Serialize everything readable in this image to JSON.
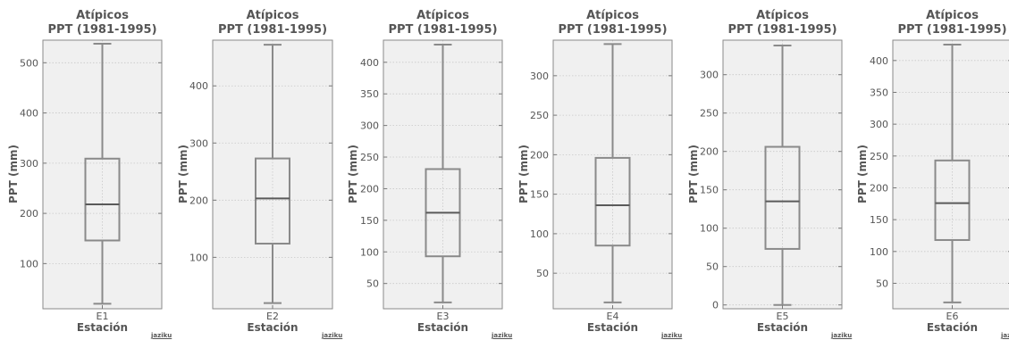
{
  "watermark": "jaziku",
  "chart_data": [
    {
      "type": "boxplot",
      "title": [
        "Atípicos",
        "PPT (1981-1995)"
      ],
      "xlabel": "Estación",
      "ylabel": "PPT (mm)",
      "categories": [
        "E1"
      ],
      "ylim": [
        10,
        545
      ],
      "yticks": [
        100,
        200,
        300,
        400,
        500
      ],
      "stats": {
        "min": 20,
        "q1": 146,
        "median": 218,
        "q3": 309,
        "max": 538
      },
      "grid": true
    },
    {
      "type": "boxplot",
      "title": [
        "Atípicos",
        "PPT (1981-1995)"
      ],
      "xlabel": "Estación",
      "ylabel": "PPT (mm)",
      "categories": [
        "E2"
      ],
      "ylim": [
        10,
        480
      ],
      "yticks": [
        100,
        200,
        300,
        400
      ],
      "stats": {
        "min": 20,
        "q1": 124,
        "median": 203,
        "q3": 273,
        "max": 472
      },
      "grid": true
    },
    {
      "type": "boxplot",
      "title": [
        "Atípicos",
        "PPT (1981-1995)"
      ],
      "xlabel": "Estación",
      "ylabel": "PPT (mm)",
      "categories": [
        "E3"
      ],
      "ylim": [
        10,
        435
      ],
      "yticks": [
        50,
        100,
        150,
        200,
        250,
        300,
        350,
        400
      ],
      "stats": {
        "min": 20,
        "q1": 93,
        "median": 162,
        "q3": 231,
        "max": 428
      },
      "grid": true
    },
    {
      "type": "boxplot",
      "title": [
        "Atípicos",
        "PPT (1981-1995)"
      ],
      "xlabel": "Estación",
      "ylabel": "PPT (mm)",
      "categories": [
        "E4"
      ],
      "ylim": [
        5,
        345
      ],
      "yticks": [
        50,
        100,
        150,
        200,
        250,
        300
      ],
      "stats": {
        "min": 13,
        "q1": 85,
        "median": 136,
        "q3": 196,
        "max": 340
      },
      "grid": true
    },
    {
      "type": "boxplot",
      "title": [
        "Atípicos",
        "PPT (1981-1995)"
      ],
      "xlabel": "Estación",
      "ylabel": "PPT (mm)",
      "categories": [
        "E5"
      ],
      "ylim": [
        -5,
        345
      ],
      "yticks": [
        0,
        50,
        100,
        150,
        200,
        250,
        300
      ],
      "stats": {
        "min": 0,
        "q1": 73,
        "median": 135,
        "q3": 206,
        "max": 338
      },
      "grid": true
    },
    {
      "type": "boxplot",
      "title": [
        "Atípicos",
        "PPT (1981-1995)"
      ],
      "xlabel": "Estación",
      "ylabel": "PPT (mm)",
      "categories": [
        "E6"
      ],
      "ylim": [
        10,
        432
      ],
      "yticks": [
        50,
        100,
        150,
        200,
        250,
        300,
        350,
        400
      ],
      "stats": {
        "min": 20,
        "q1": 118,
        "median": 176,
        "q3": 243,
        "max": 425
      },
      "grid": true
    }
  ]
}
